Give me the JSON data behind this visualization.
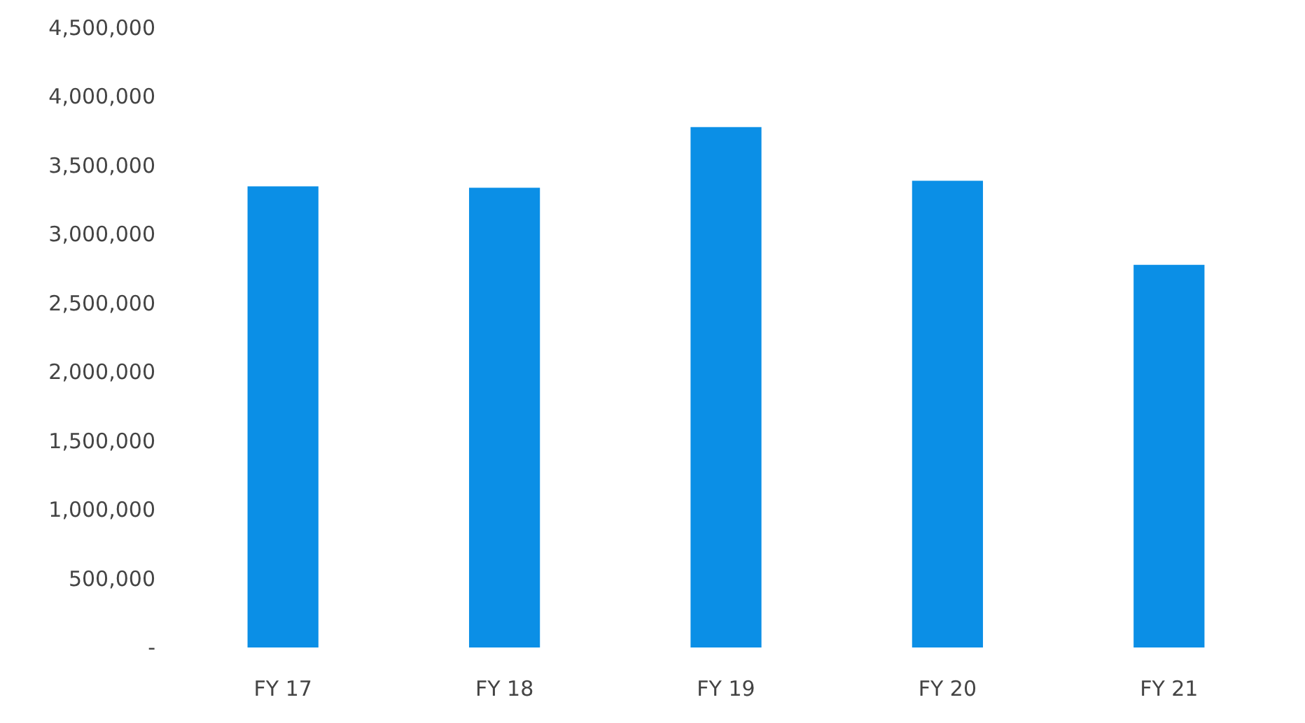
{
  "chart_data": {
    "type": "bar",
    "categories": [
      "FY 17",
      "FY 18",
      "FY 19",
      "FY 20",
      "FY 21"
    ],
    "values": [
      3350000,
      3340000,
      3780000,
      3390000,
      2780000
    ],
    "color": "#0b8fe6",
    "ylim": [
      0,
      4500000
    ],
    "yticks": [
      {
        "value": 0,
        "label": "-"
      },
      {
        "value": 500000,
        "label": "500,000"
      },
      {
        "value": 1000000,
        "label": "1,000,000"
      },
      {
        "value": 1500000,
        "label": "1,500,000"
      },
      {
        "value": 2000000,
        "label": "2,000,000"
      },
      {
        "value": 2500000,
        "label": "2,500,000"
      },
      {
        "value": 3000000,
        "label": "3,000,000"
      },
      {
        "value": 3500000,
        "label": "3,500,000"
      },
      {
        "value": 4000000,
        "label": "4,000,000"
      },
      {
        "value": 4500000,
        "label": "4,500,000"
      }
    ],
    "grid": false
  }
}
